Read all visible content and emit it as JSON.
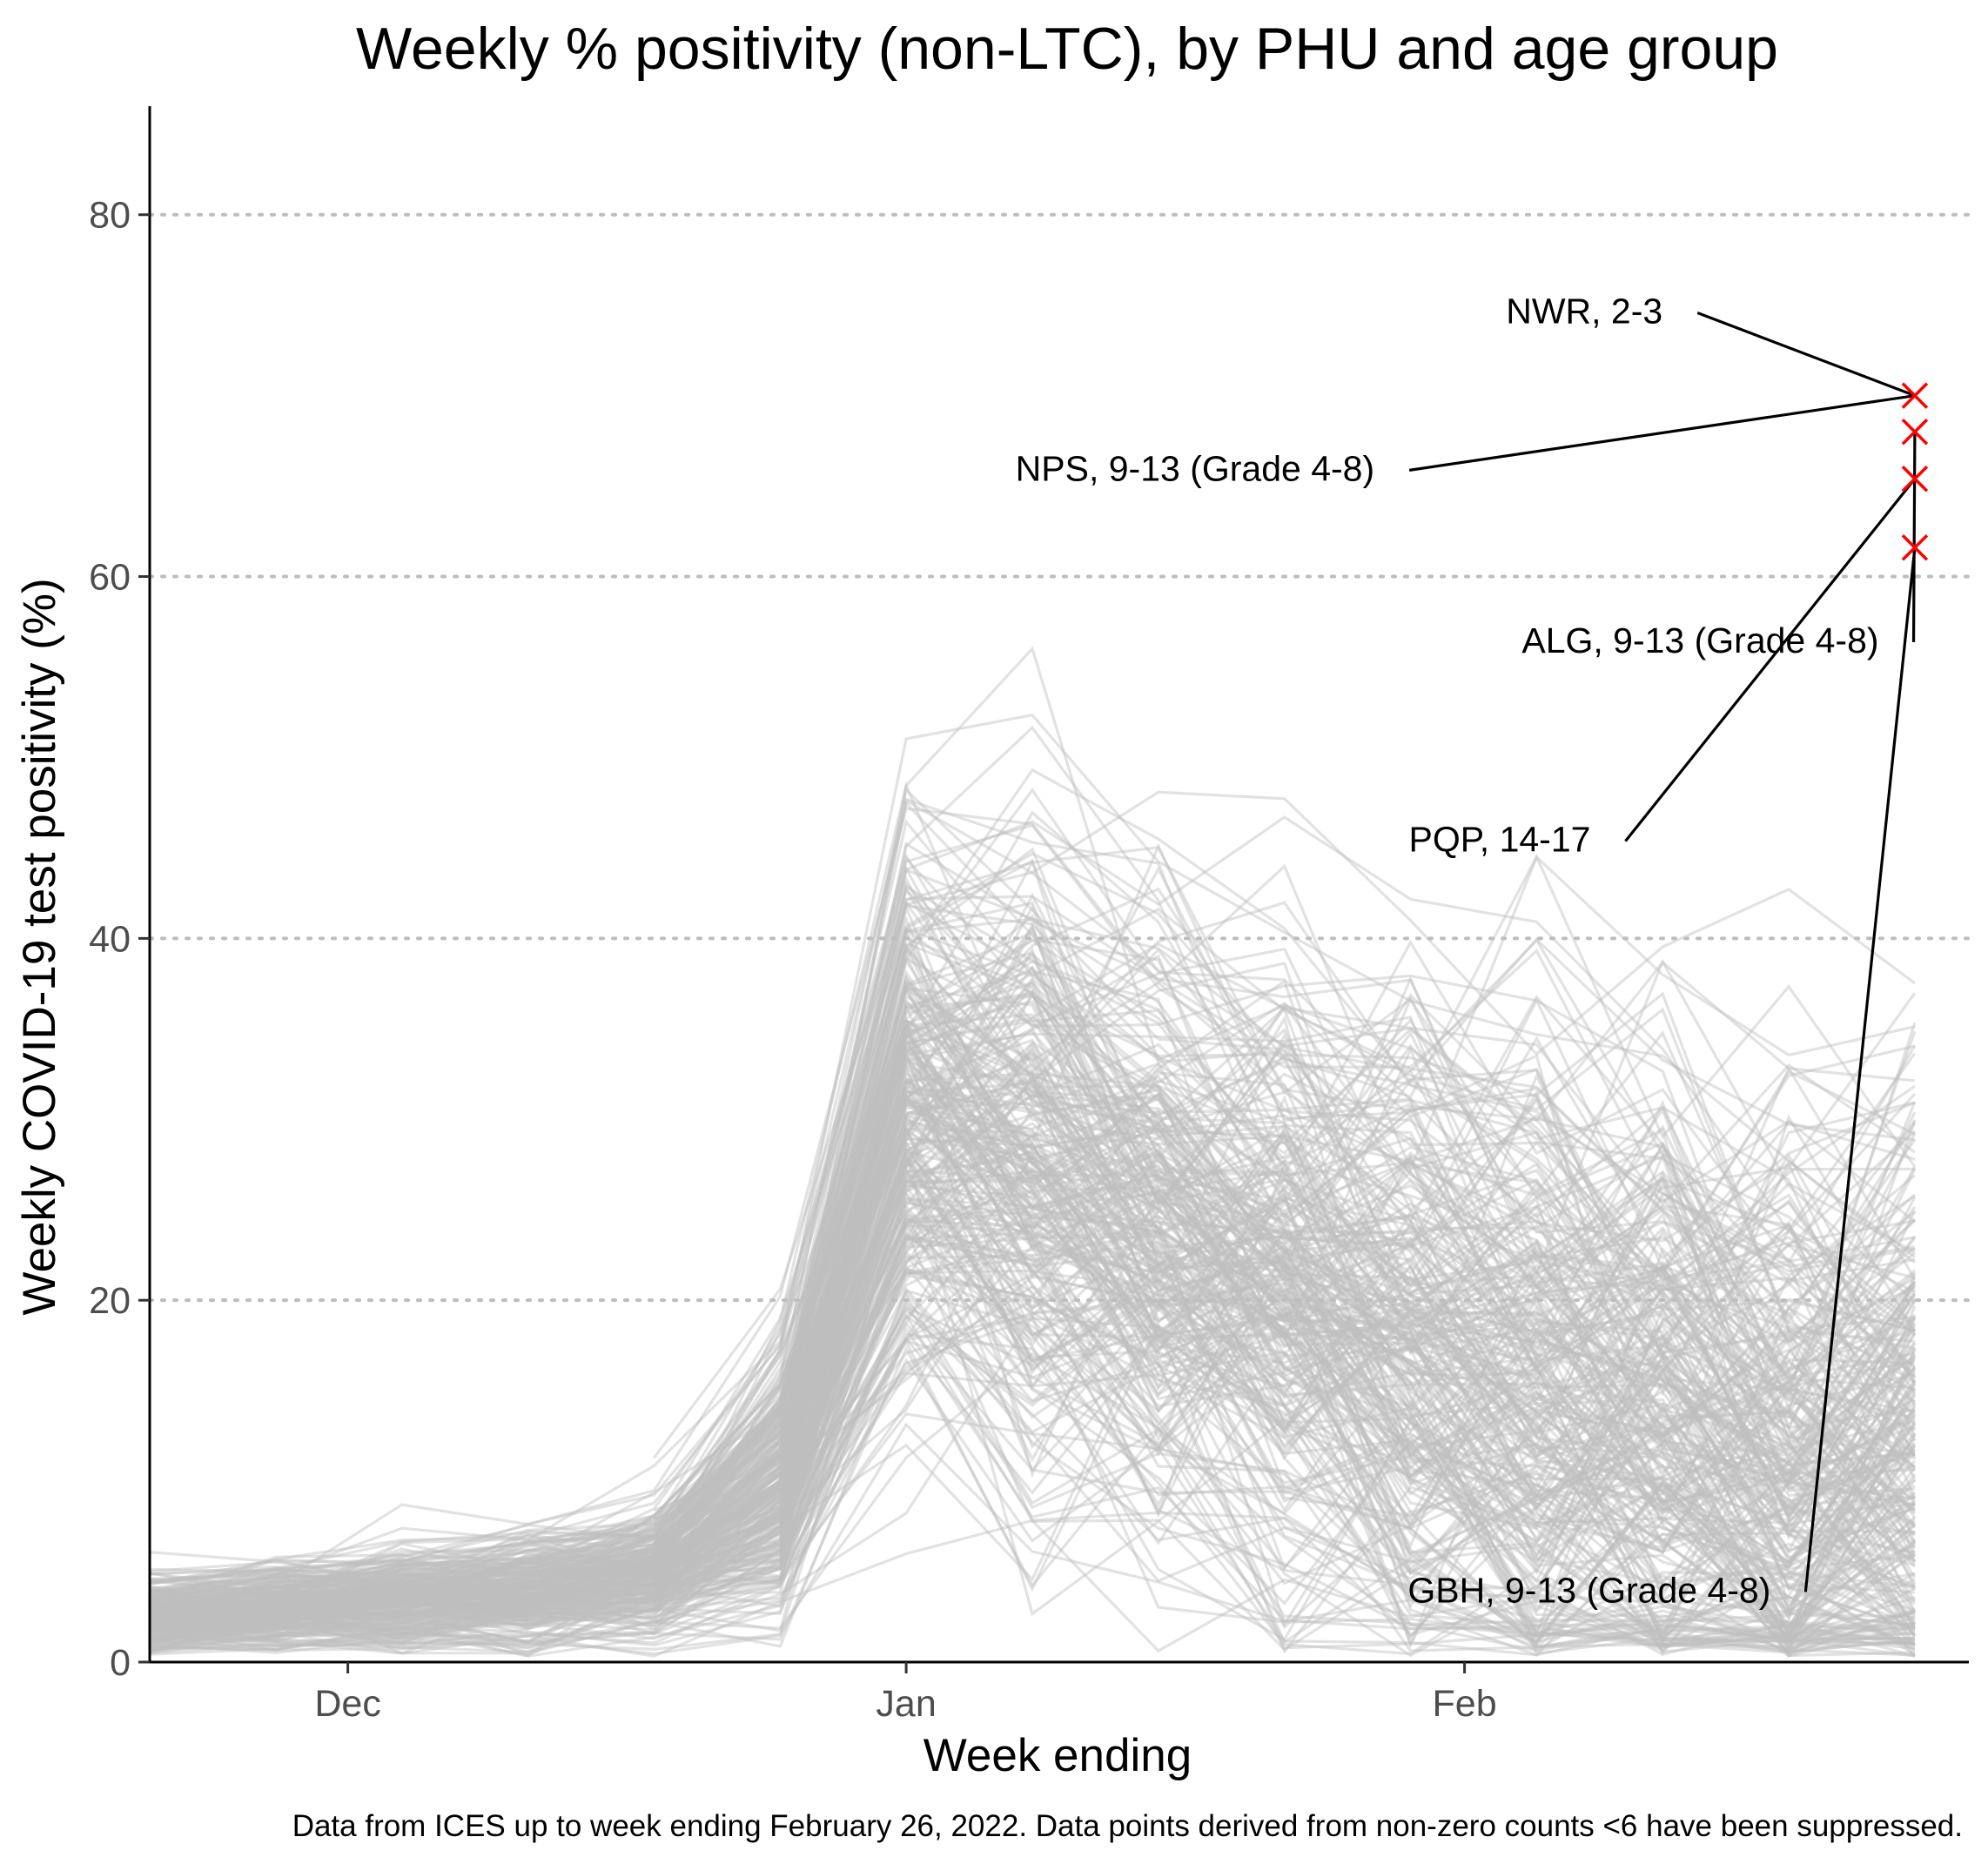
{
  "chart_data": {
    "type": "line",
    "title": "Weekly % positivity (non-LTC), by PHU and age group",
    "xlabel": "Week ending",
    "ylabel": "Weekly COVID-19 test positivity (%)",
    "caption": "Data from ICES up to week ending February 26, 2022. Data points derived from non-zero counts <6 have been suppressed.",
    "x_weeks": [
      "2021-11-20",
      "2021-11-27",
      "2021-12-04",
      "2021-12-11",
      "2021-12-18",
      "2021-12-25",
      "2022-01-01",
      "2022-01-08",
      "2022-01-15",
      "2022-01-22",
      "2022-01-29",
      "2022-02-05",
      "2022-02-12",
      "2022-02-19",
      "2022-02-26"
    ],
    "xlim": [
      "2021-11-20",
      "2022-03-01"
    ],
    "ylim": [
      0,
      86
    ],
    "x_ticks": [
      {
        "label": "Dec",
        "date": "2021-12-01"
      },
      {
        "label": "Jan",
        "date": "2022-01-01"
      },
      {
        "label": "Feb",
        "date": "2022-02-01"
      }
    ],
    "y_ticks": [
      0,
      20,
      40,
      60,
      80
    ],
    "grid": {
      "horizontal": "dotted",
      "vertical": false
    },
    "background_series": {
      "color": "#bebebe",
      "description_count": 320,
      "representative_median": [
        2.5,
        3.0,
        3.5,
        4.0,
        5.0,
        10.0,
        30.0,
        27.0,
        24.0,
        21.0,
        18.0,
        15.0,
        13.0,
        11.0,
        12.0
      ],
      "representative_spread": [
        2.5,
        2.5,
        3.0,
        3.5,
        4.0,
        8.0,
        18.0,
        20.0,
        20.0,
        21.0,
        21.0,
        22.0,
        22.0,
        22.0,
        22.0
      ]
    },
    "highlighted_points": [
      {
        "label": "NWR, 2-3",
        "date": "2022-02-26",
        "value": 70.0
      },
      {
        "label": "NPS, 9-13 (Grade 4-8)",
        "date": "2022-02-26",
        "value": 70.0
      },
      {
        "label": "ALG, 9-13 (Grade 4-8)",
        "date": "2022-02-26",
        "value": 68.0
      },
      {
        "label": "PQP, 14-17",
        "date": "2022-02-26",
        "value": 65.4
      },
      {
        "label": "GBH, 9-13 (Grade 4-8)",
        "date": "2022-02-26",
        "value": 61.6
      }
    ],
    "annotations": [
      {
        "label": "NWR, 2-3",
        "x_date": "2022-02-12",
        "y_value": 74.0,
        "anchor": "end"
      },
      {
        "label": "NPS, 9-13 (Grade 4-8)",
        "x_date": "2022-01-27",
        "y_value": 65.3,
        "anchor": "end"
      },
      {
        "label": "ALG, 9-13 (Grade 4-8)",
        "x_date": "2022-02-24",
        "y_value": 55.8,
        "anchor": "end"
      },
      {
        "label": "PQP, 14-17",
        "x_date": "2022-02-08",
        "y_value": 44.8,
        "anchor": "end"
      },
      {
        "label": "GBH, 9-13 (Grade 4-8)",
        "x_date": "2022-02-18",
        "y_value": 3.3,
        "anchor": "end"
      }
    ],
    "marker_color": "#ff0000"
  }
}
